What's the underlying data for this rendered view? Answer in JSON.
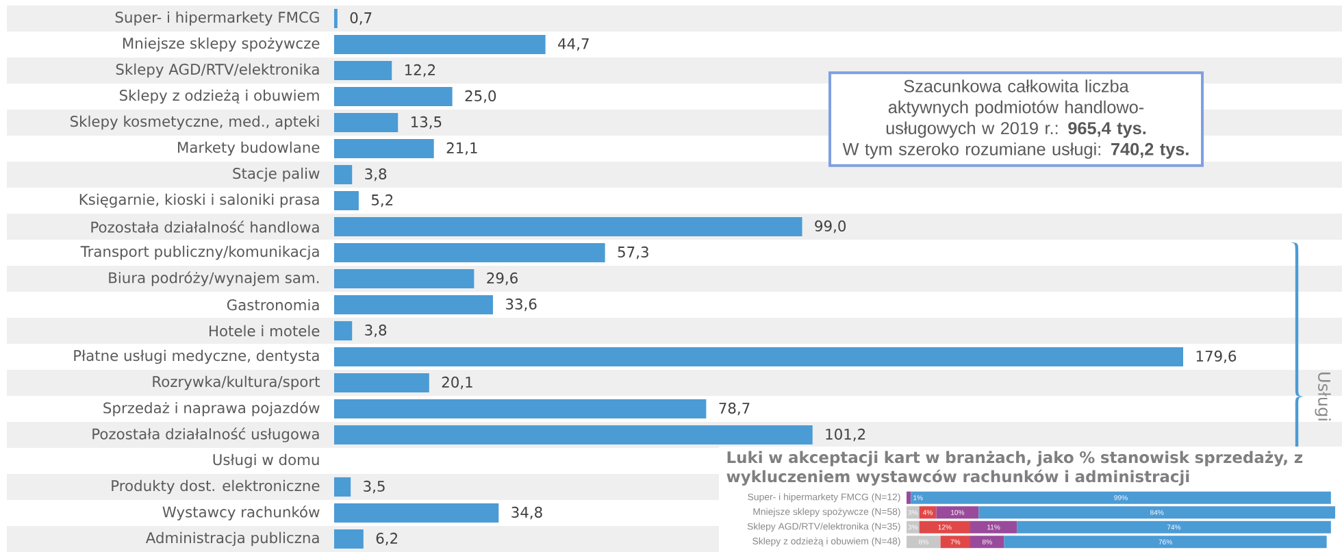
{
  "chart_data": [
    {
      "type": "bar",
      "orientation": "horizontal",
      "color": "#4b9bd5",
      "categories": [
        "Super- i hipermarkety FMCG",
        "Mniejsze sklepy spożywcze",
        "Sklepy AGD/RTV/elektronika",
        "Sklepy z odzieżą i obuwiem",
        "Sklepy kosmetyczne, med., apteki",
        "Markety budowlane",
        "Stacje paliw",
        "Księgarnie, kioski i saloniki prasa",
        "Pozostała działalność handlowa",
        "Transport publiczny/komunikacja",
        "Biura podróży/wynajem sam.",
        "Gastronomia",
        "Hotele i motele",
        "Płatne usługi medyczne, dentysta",
        "Rozrywka/kultura/sport",
        "Sprzedaż i naprawa pojazdów",
        "Pozostała działalność usługowa",
        "Usługi w domu",
        "Produkty dost. elektroniczne",
        "Wystawcy rachunków",
        "Administracja publiczna"
      ],
      "values": [
        0.7,
        44.7,
        12.2,
        25.0,
        13.5,
        21.1,
        3.8,
        5.2,
        99.0,
        57.3,
        29.6,
        33.6,
        3.8,
        179.6,
        20.1,
        78.7,
        101.2,
        null,
        3.5,
        34.8,
        6.2
      ],
      "value_labels": [
        "0,7",
        "44,7",
        "12,2",
        "25,0",
        "13,5",
        "21,1",
        "3,8",
        "5,2",
        "99,0",
        "57,3",
        "29,6",
        "33,6",
        "3,8",
        "179,6",
        "20,1",
        "78,7",
        "101,2",
        null,
        "3,5",
        "34,8",
        "6,2"
      ],
      "annotations": [
        "Szacunkowa całkowita liczba aktywnych podmiotów handlowo-usługowych w 2019 r.: **965,4 tys.**",
        "W tym szeroko rozumiane usługi: **740,2 tys.**",
        "Usługi"
      ]
    },
    {
      "type": "bar",
      "orientation": "horizontal",
      "stacked": true,
      "title": "Luki w akceptacji kart w branżach, jako % stanowisk sprzedaży, z wykluczeniem wystawców rachunków i administracji",
      "categories": [
        "Super- i hipermarkety FMCG (N=12)",
        "Mniejsze sklepy spożywcze (N=58)",
        "Sklepy AGD/RTV/elektronika (N=35)",
        "Sklepy z odzieżą i obuwiem (N=48)"
      ],
      "series": [
        {
          "color": "#c8c8c8",
          "values": [
            null,
            3,
            3,
            8
          ],
          "value_labels": [
            null,
            "3%",
            "3%",
            "8%"
          ]
        },
        {
          "color": "#e04848",
          "values": [
            null,
            4,
            12,
            7
          ],
          "value_labels": [
            null,
            "4%",
            "12%",
            "7%"
          ]
        },
        {
          "color": "#9a4a9a",
          "values": [
            1,
            10,
            11,
            8
          ],
          "value_labels": [
            "1%",
            "10%",
            "11%",
            "8%"
          ]
        },
        {
          "color": "#4b9bd5",
          "values": [
            99,
            84,
            74,
            76
          ],
          "value_labels": [
            "99%",
            "84%",
            "74%",
            "76%"
          ]
        }
      ]
    }
  ]
}
